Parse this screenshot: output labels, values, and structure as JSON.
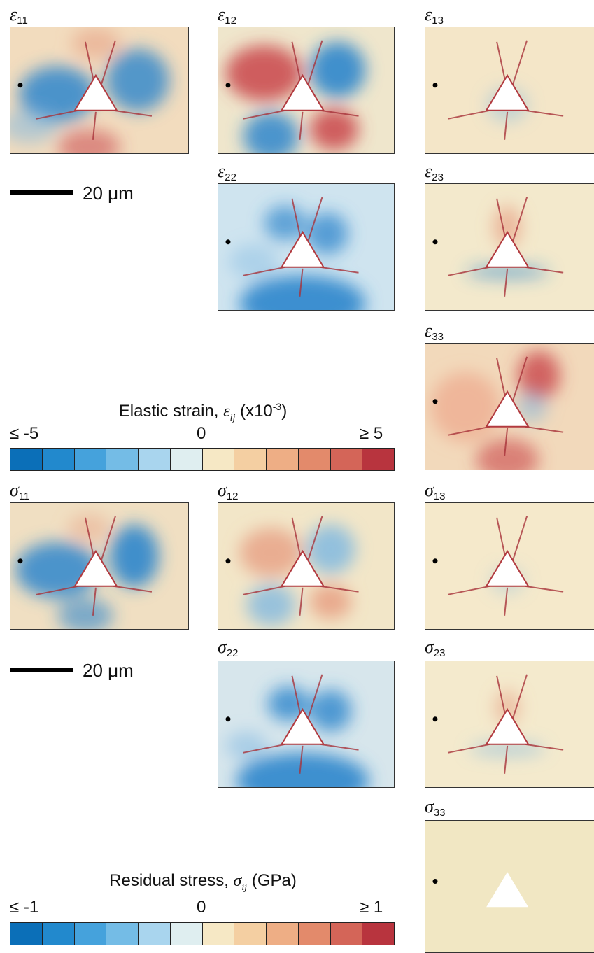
{
  "strain": {
    "panels": [
      {
        "id": "e11",
        "symbol": "ε",
        "sub": "11"
      },
      {
        "id": "e12",
        "symbol": "ε",
        "sub": "12"
      },
      {
        "id": "e13",
        "symbol": "ε",
        "sub": "13"
      },
      {
        "id": "e22",
        "symbol": "ε",
        "sub": "22"
      },
      {
        "id": "e23",
        "symbol": "ε",
        "sub": "23"
      },
      {
        "id": "e33",
        "symbol": "ε",
        "sub": "33"
      }
    ],
    "scale_label": "20 μm",
    "colorbar": {
      "title_prefix": "Elastic strain, ",
      "title_symbol": "ε",
      "title_sub": "ij",
      "title_suffix_pre": " (x10",
      "title_sup": "-3",
      "title_suffix_post": ")",
      "min_label": "≤ -5",
      "mid_label": "0",
      "max_label": "≥ 5"
    }
  },
  "stress": {
    "panels": [
      {
        "id": "s11",
        "symbol": "σ",
        "sub": "11"
      },
      {
        "id": "s12",
        "symbol": "σ",
        "sub": "12"
      },
      {
        "id": "s13",
        "symbol": "σ",
        "sub": "13"
      },
      {
        "id": "s22",
        "symbol": "σ",
        "sub": "22"
      },
      {
        "id": "s23",
        "symbol": "σ",
        "sub": "23"
      },
      {
        "id": "s33",
        "symbol": "σ",
        "sub": "33"
      }
    ],
    "scale_label": "20 μm",
    "colorbar": {
      "title_prefix": "Residual stress, ",
      "title_symbol": "σ",
      "title_sub": "ij",
      "title_suffix": " (GPa)",
      "min_label": "≤ -1",
      "mid_label": "0",
      "max_label": "≥ 1"
    }
  },
  "colormap": [
    "#0b6fb8",
    "#2289cd",
    "#45a2dc",
    "#74bce6",
    "#a9d5ee",
    "#dfeef0",
    "#f6e8c5",
    "#f4cfa2",
    "#eeae85",
    "#e38a6b",
    "#d46558",
    "#b8343e"
  ],
  "background_color": "#f3e9c8"
}
